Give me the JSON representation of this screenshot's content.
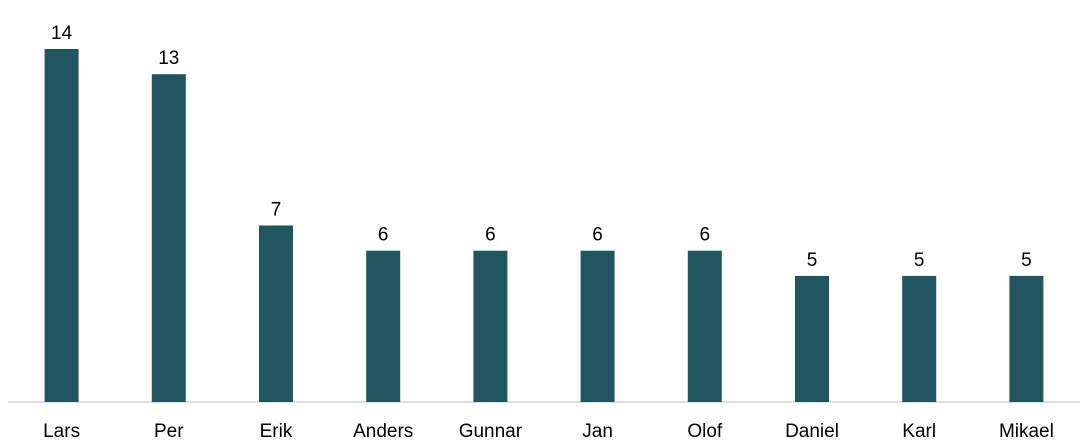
{
  "chart_data": {
    "type": "bar",
    "categories": [
      "Lars",
      "Per",
      "Erik",
      "Anders",
      "Gunnar",
      "Jan",
      "Olof",
      "Daniel",
      "Karl",
      "Mikael"
    ],
    "values": [
      14,
      13,
      7,
      6,
      6,
      6,
      6,
      5,
      5,
      5
    ],
    "value_labels": [
      "14",
      "13",
      "7",
      "6",
      "6",
      "6",
      "6",
      "5",
      "5",
      "5"
    ],
    "title": "",
    "xlabel": "",
    "ylabel": "",
    "ylim": [
      0,
      14
    ],
    "grid": false,
    "legend": "none",
    "bar_color": "#215660",
    "axis_color": "#bfbfbf"
  }
}
